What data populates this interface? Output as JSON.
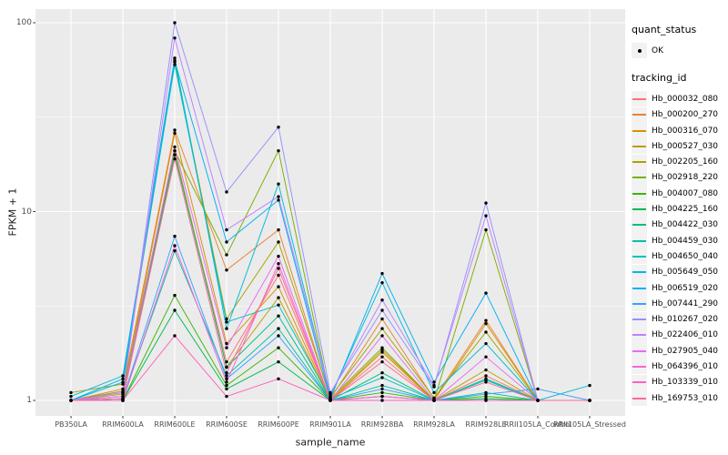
{
  "chart": {
    "y_ticks": [
      "100",
      "10",
      "1"
    ]
  },
  "legend": {
    "quant_status_title": "quant_status",
    "quant_status_items": [
      "OK"
    ],
    "tracking_title": "tracking_id"
  },
  "chart_data": {
    "type": "line",
    "title": "",
    "xlabel": "sample_name",
    "ylabel": "FPKM + 1",
    "yscale": "log10",
    "ylim": [
      1,
      100
    ],
    "grid": true,
    "legend_position": "right",
    "panel_background": "#EBEBEB",
    "gridline_color": "#FFFFFF",
    "point_color": "#000000",
    "axis_text_color": "#4D4D4D",
    "tick_color": "#333333",
    "y_major_gridlines": [
      1,
      10,
      100
    ],
    "y_minor_gridlines": [
      3.1623,
      31.623
    ],
    "x": [
      "PB350LA",
      "RRIM600LA",
      "RRIM600LE",
      "RRIM600SE",
      "RRIM600PE",
      "RRIM901LA",
      "RRIM928BA",
      "RRIM928LA",
      "RRIM928LE",
      "RRII105LA_Control",
      "RRII105LA_Stressed"
    ],
    "series": [
      {
        "name": "Hb_000032_080",
        "color": "#F8766D",
        "values": [
          1.0,
          1.02,
          20,
          1.6,
          4.6,
          1.0,
          1.7,
          1.0,
          1.35,
          1.0,
          1.0
        ]
      },
      {
        "name": "Hb_000200_270",
        "color": "#EA8331",
        "values": [
          1.0,
          1.15,
          27,
          4.9,
          8.0,
          1.02,
          2.7,
          1.02,
          2.65,
          1.0,
          1.0
        ]
      },
      {
        "name": "Hb_000316_070",
        "color": "#D89000",
        "values": [
          1.0,
          1.08,
          26,
          2.0,
          4.0,
          1.0,
          1.8,
          1.0,
          2.55,
          1.0,
          1.0
        ]
      },
      {
        "name": "Hb_000527_030",
        "color": "#C09B00",
        "values": [
          1.0,
          1.02,
          21,
          1.5,
          3.5,
          1.0,
          1.85,
          1.0,
          1.45,
          1.0,
          1.0
        ]
      },
      {
        "name": "Hb_002205_160",
        "color": "#A3A500",
        "values": [
          1.1,
          1.22,
          62,
          2.7,
          6.9,
          1.04,
          2.4,
          1.03,
          2.3,
          1.0,
          1.0
        ]
      },
      {
        "name": "Hb_002918_220",
        "color": "#7CAE00",
        "values": [
          1.0,
          1.12,
          21,
          5.9,
          21,
          1.02,
          1.9,
          1.0,
          8.0,
          1.0,
          1.0
        ]
      },
      {
        "name": "Hb_004007_080",
        "color": "#39B600",
        "values": [
          1.0,
          1.0,
          3.6,
          1.2,
          1.9,
          1.0,
          1.1,
          1.0,
          1.05,
          1.0,
          1.0
        ]
      },
      {
        "name": "Hb_004225_160",
        "color": "#00BB4E",
        "values": [
          1.0,
          1.0,
          3.0,
          1.15,
          1.6,
          1.0,
          1.05,
          1.0,
          1.02,
          1.0,
          1.0
        ]
      },
      {
        "name": "Hb_004422_030",
        "color": "#00BF7D",
        "values": [
          1.0,
          1.05,
          20,
          1.5,
          2.8,
          1.0,
          1.4,
          1.0,
          1.3,
          1.0,
          1.0
        ]
      },
      {
        "name": "Hb_004459_030",
        "color": "#00C1A3",
        "values": [
          1.0,
          1.02,
          6.2,
          1.35,
          2.4,
          1.0,
          1.2,
          1.0,
          1.1,
          1.0,
          1.0
        ]
      },
      {
        "name": "Hb_004650_040",
        "color": "#00BFC4",
        "values": [
          1.0,
          1.25,
          60,
          2.6,
          3.2,
          1.02,
          1.32,
          1.0,
          1.28,
          1.0,
          1.0
        ]
      },
      {
        "name": "Hb_005649_050",
        "color": "#00BBDA",
        "values": [
          1.05,
          1.35,
          65,
          2.4,
          14,
          1.05,
          4.2,
          1.1,
          2.0,
          1.0,
          1.2
        ]
      },
      {
        "name": "Hb_006519_020",
        "color": "#00B0F6",
        "values": [
          1.0,
          1.3,
          63,
          6.9,
          11.5,
          1.02,
          4.7,
          1.25,
          3.7,
          1.0,
          1.0
        ]
      },
      {
        "name": "Hb_007441_290",
        "color": "#35A2FF",
        "values": [
          1.0,
          1.02,
          7.4,
          1.3,
          2.2,
          1.0,
          1.15,
          1.0,
          1.08,
          1.15,
          1.0
        ]
      },
      {
        "name": "Hb_010267_020",
        "color": "#9590FF",
        "values": [
          1.0,
          1.1,
          100,
          12.7,
          28,
          1.1,
          3.0,
          1.18,
          11.1,
          1.0,
          1.0
        ]
      },
      {
        "name": "Hb_022406_010",
        "color": "#BF80FF",
        "values": [
          1.0,
          1.1,
          83,
          8.0,
          12,
          1.08,
          3.4,
          1.2,
          9.5,
          1.0,
          1.0
        ]
      },
      {
        "name": "Hb_027905_040",
        "color": "#E76BF3",
        "values": [
          1.0,
          1.05,
          22,
          1.9,
          5.8,
          1.0,
          2.2,
          1.0,
          1.7,
          1.0,
          1.0
        ]
      },
      {
        "name": "Hb_064396_010",
        "color": "#FD61D1",
        "values": [
          1.0,
          1.0,
          6.6,
          1.25,
          5.3,
          1.0,
          1.05,
          1.0,
          1.0,
          1.0,
          1.0
        ]
      },
      {
        "name": "Hb_103339_010",
        "color": "#FF62BC",
        "values": [
          1.0,
          1.0,
          2.2,
          1.05,
          1.3,
          1.0,
          1.0,
          1.0,
          1.0,
          1.0,
          1.0
        ]
      },
      {
        "name": "Hb_169753_010",
        "color": "#FF6A98",
        "values": [
          1.0,
          1.02,
          19,
          1.4,
          5.0,
          1.0,
          1.6,
          1.0,
          1.25,
          1.0,
          1.0
        ]
      }
    ]
  }
}
